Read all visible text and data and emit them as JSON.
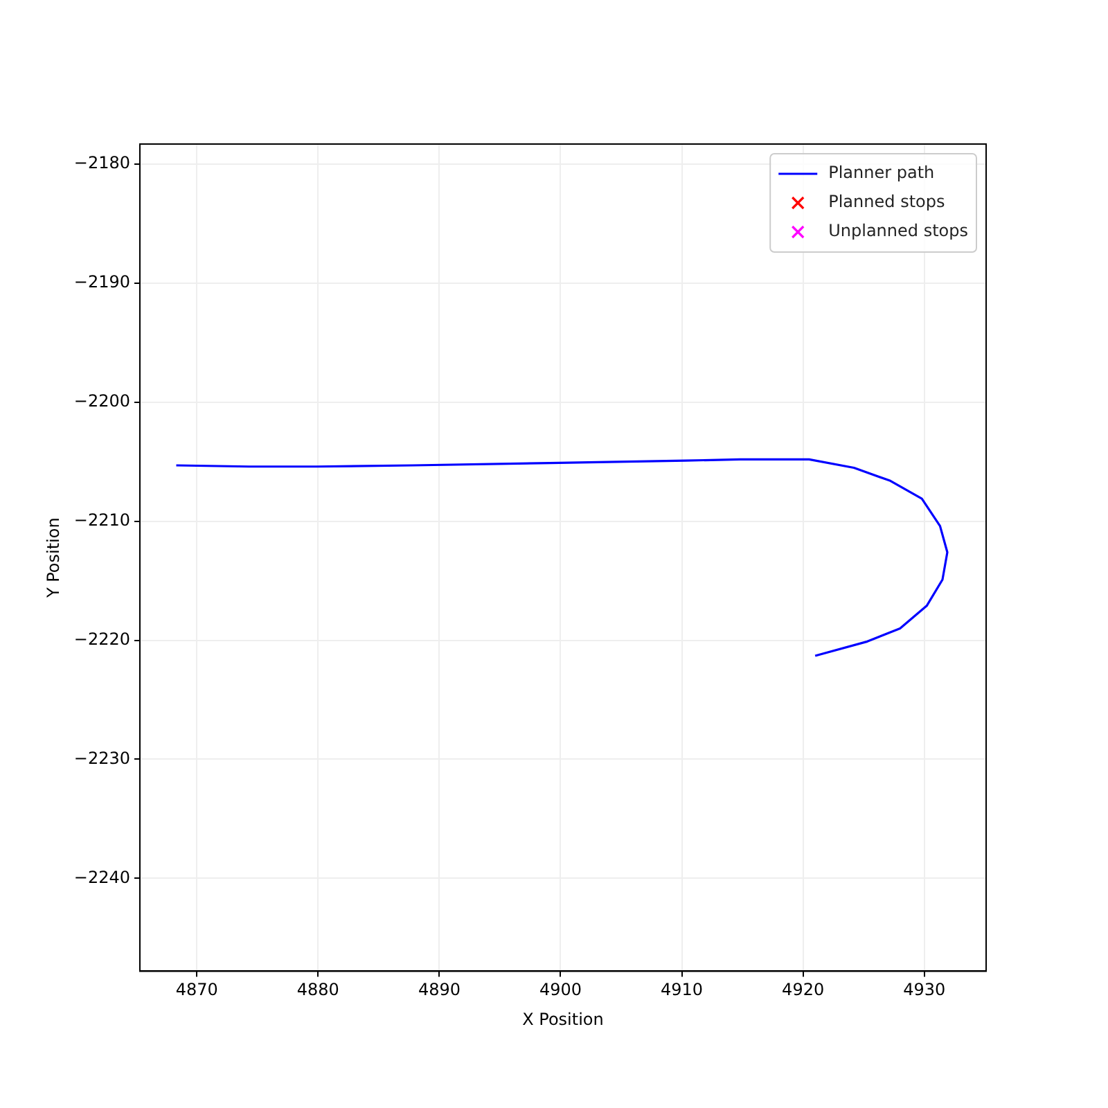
{
  "chart_data": {
    "type": "line",
    "xlabel": "X Position",
    "ylabel": "Y Position",
    "xlim": [
      4865.3,
      4935.1
    ],
    "ylim": [
      -2247.8,
      -2178.3
    ],
    "xticks": [
      4870,
      4880,
      4890,
      4900,
      4910,
      4920,
      4930
    ],
    "yticks": [
      -2240,
      -2230,
      -2220,
      -2210,
      -2200,
      -2190,
      -2180
    ],
    "grid": true,
    "legend": "top right",
    "series": [
      {
        "name": "Planner path",
        "color": "#0000ff",
        "marker": "none",
        "line_style": "solid",
        "x": [
          4868.3,
          4874.3,
          4879.9,
          4887.8,
          4899.1,
          4910.3,
          4914.8,
          4919.3,
          4920.5,
          4924.2,
          4927.2,
          4929.8,
          4931.3,
          4931.9,
          4931.5,
          4930.2,
          4928.0,
          4925.3,
          4921.0
        ],
        "values": [
          -2205.3,
          -2205.4,
          -2205.4,
          -2205.3,
          -2205.1,
          -2204.9,
          -2204.8,
          -2204.8,
          -2204.8,
          -2205.5,
          -2206.6,
          -2208.1,
          -2210.4,
          -2212.6,
          -2214.9,
          -2217.1,
          -2219.0,
          -2220.1,
          -2221.3
        ]
      },
      {
        "name": "Planned stops",
        "type": "scatter",
        "color": "#ff0000",
        "marker": "cross"
      },
      {
        "name": "Unplanned stops",
        "type": "scatter",
        "color": "#ff00ff",
        "marker": "cross"
      }
    ]
  }
}
